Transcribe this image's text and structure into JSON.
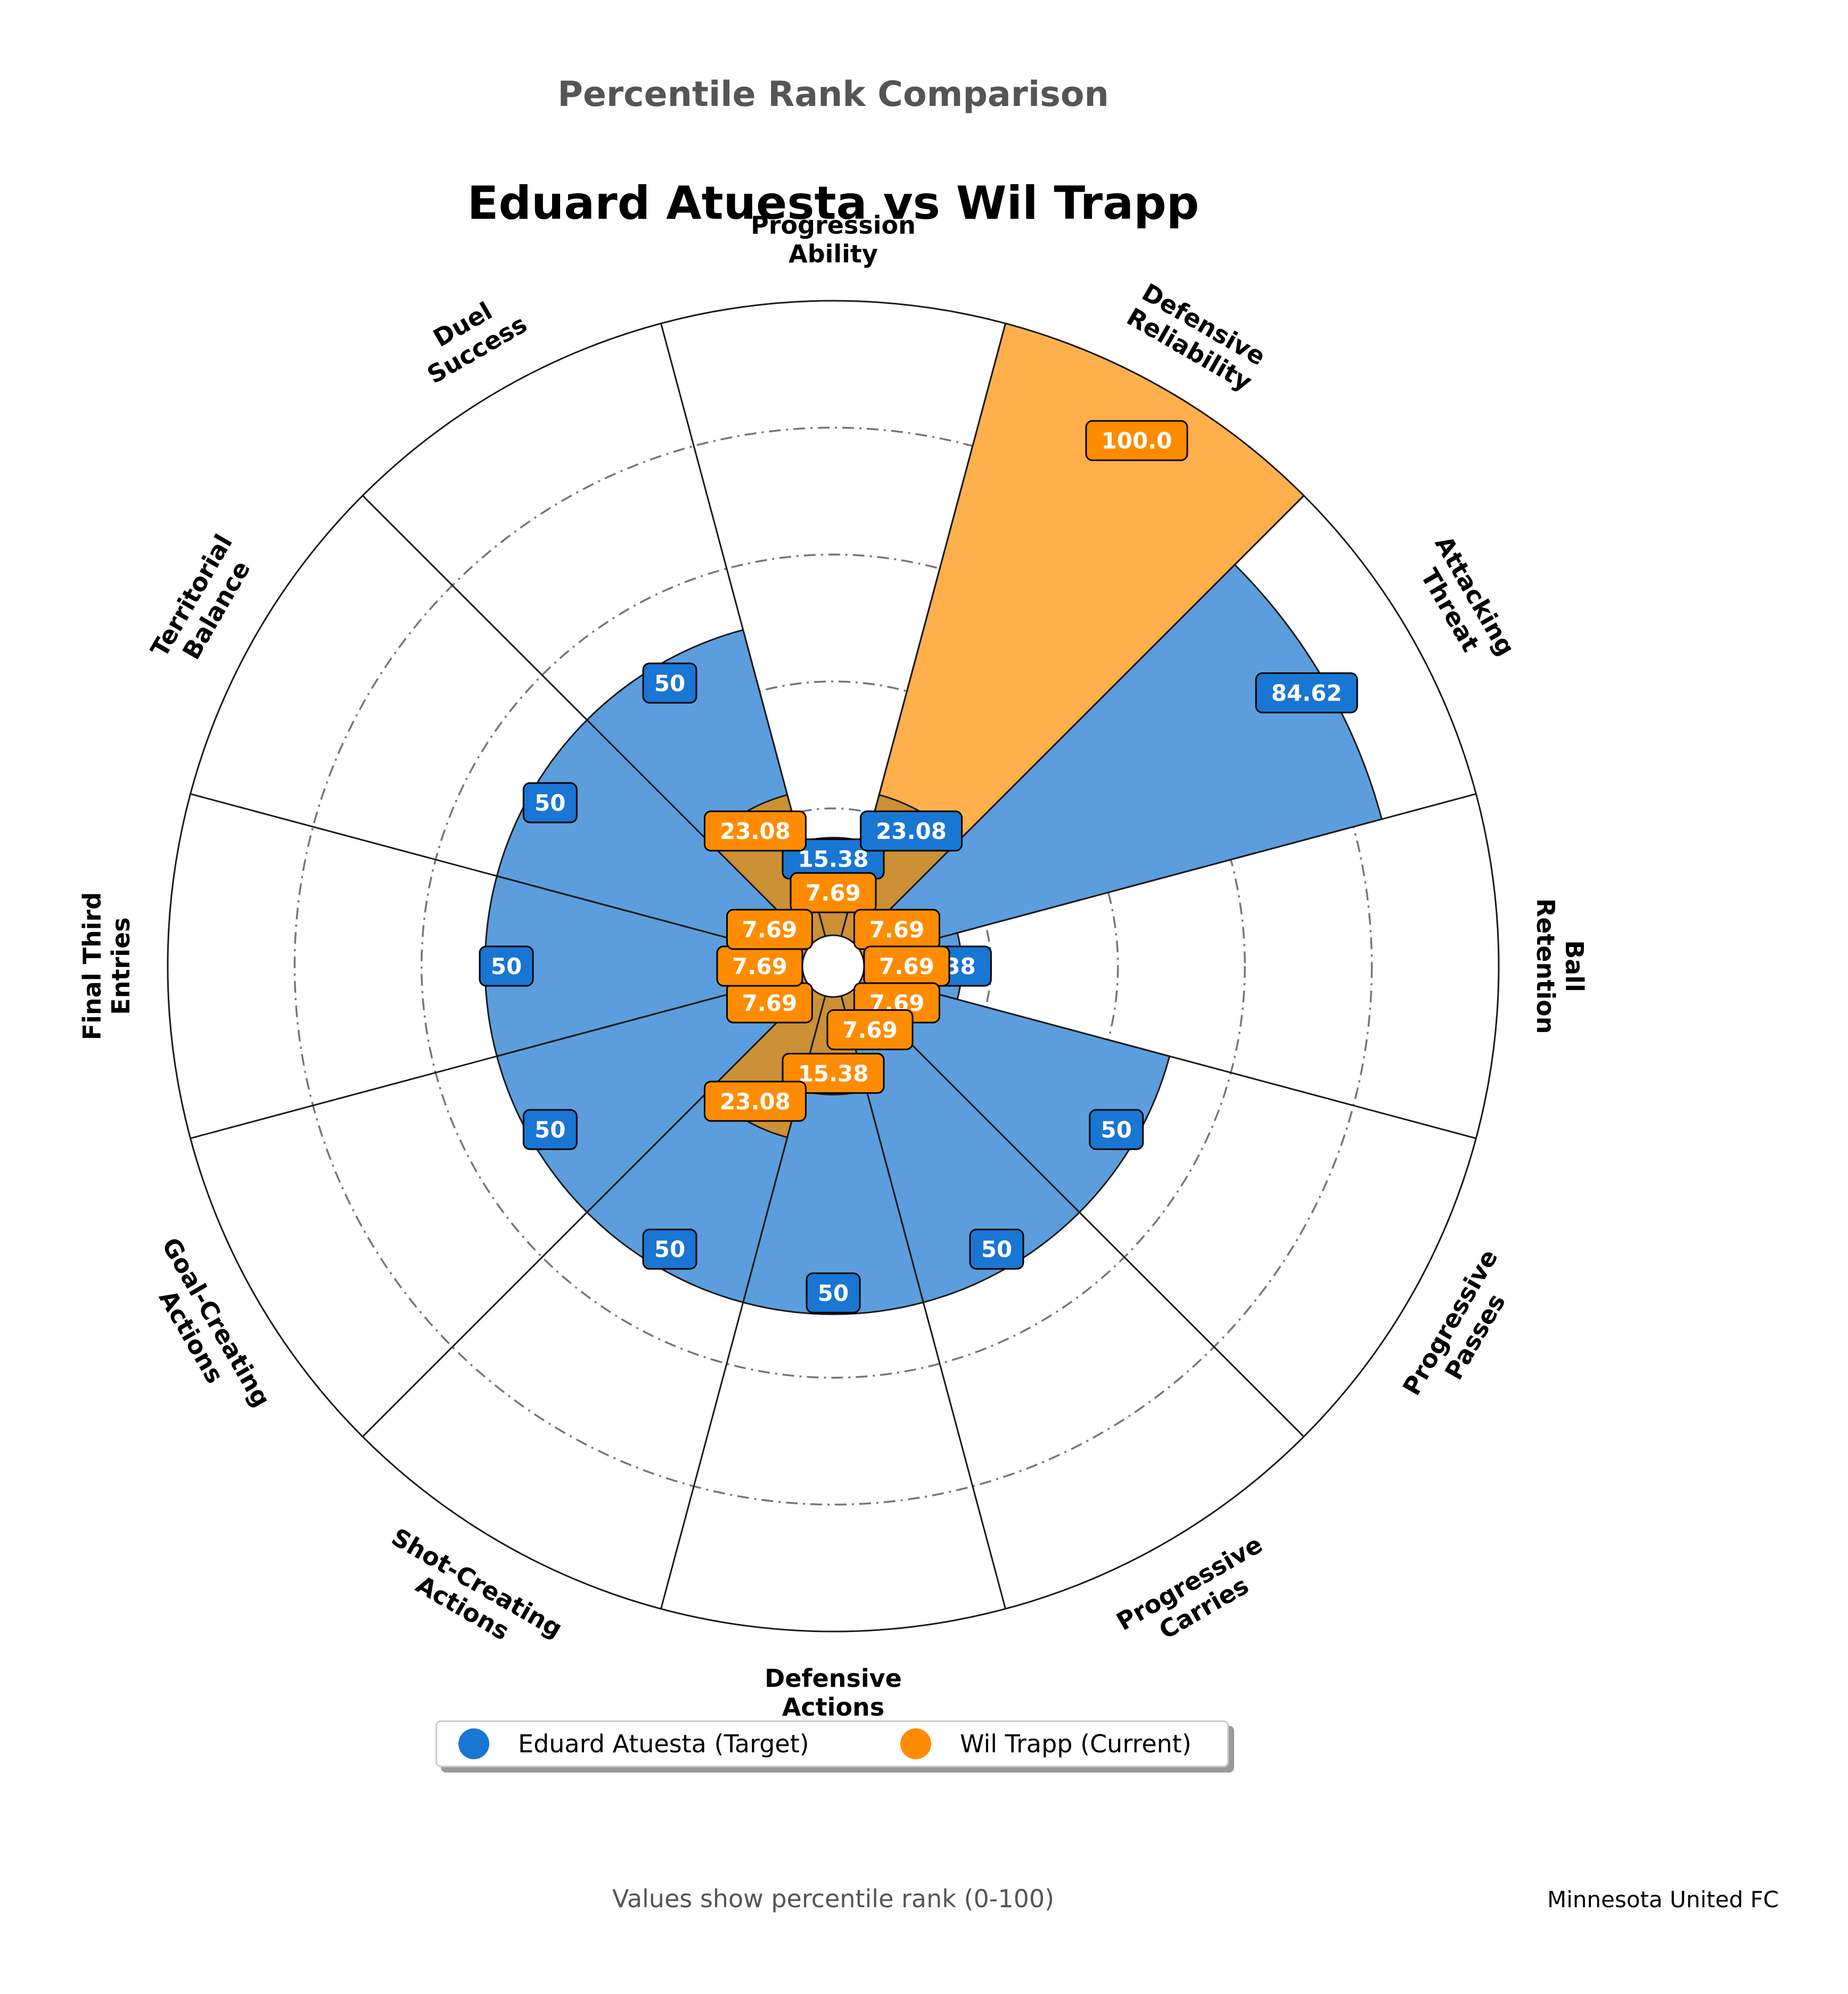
{
  "suptitle": "Percentile Rank Comparison",
  "title": "Eduard Atuesta vs Wil Trapp",
  "footnote": "Values show percentile rank (0-100)",
  "club": "Minnesota United FC",
  "colors": {
    "target": "#1976D2",
    "target_fill": "#5C9EDD",
    "current": "#FF8C00",
    "current_fill": "#FFB04D",
    "overlap_fill": "#CC9036",
    "grid": "#777777",
    "edge": "#1a1a1a"
  },
  "legend": {
    "target": "Eduard Atuesta (Target)",
    "current": "Wil Trapp (Current)"
  },
  "chart_data": {
    "type": "polar-bar",
    "title": "Eduard Atuesta vs Wil Trapp",
    "ylim": [
      0,
      100
    ],
    "grid": true,
    "legend_position": "bottom",
    "categories": [
      "Progression\nAbility",
      "Defensive\nReliability",
      "Attacking\nThreat",
      "Ball\nRetention",
      "Progressive\nPasses",
      "Progressive\nCarries",
      "Defensive\nActions",
      "Shot-Creating\nActions",
      "Goal-Creating\nActions",
      "Final Third\nEntries",
      "Territorial\nBalance",
      "Duel\nSuccess"
    ],
    "series": [
      {
        "name": "Eduard Atuesta (Target)",
        "values": [
          15.38,
          23.08,
          84.62,
          15.38,
          50,
          50,
          50,
          50,
          50,
          50,
          50,
          50
        ],
        "labels": [
          "15.38",
          "23.08",
          "84.62",
          "15.38",
          "50",
          "50",
          "50",
          "50",
          "50",
          "50",
          "50",
          "50"
        ]
      },
      {
        "name": "Wil Trapp (Current)",
        "values": [
          7.69,
          100.0,
          7.69,
          7.69,
          7.69,
          7.69,
          15.38,
          23.08,
          7.69,
          7.69,
          7.69,
          23.08
        ],
        "labels": [
          "7.69",
          "100.0",
          "7.69",
          "7.69",
          "7.69",
          "7.69",
          "15.38",
          "23.08",
          "7.69",
          "7.69",
          "7.69",
          "23.08"
        ]
      }
    ]
  }
}
